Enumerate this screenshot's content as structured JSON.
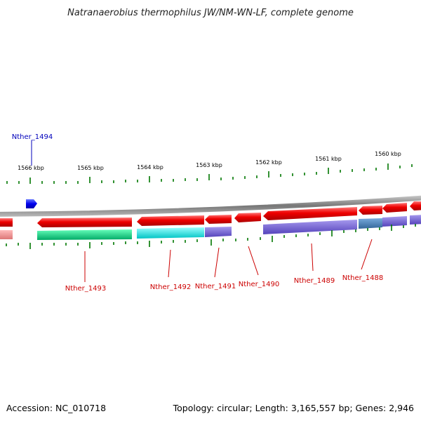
{
  "title": "Natranaerobius thermophilus JW/NM-WN-LF, complete genome",
  "footer": {
    "accession": "Accession: NC_010718",
    "summary": "Topology: circular; Length: 3,165,557 bp; Genes: 2,946"
  },
  "scale_labels": [
    "1566 kbp",
    "1565 kbp",
    "1564 kbp",
    "1563 kbp",
    "1562 kbp",
    "1561 kbp",
    "1560 kbp"
  ],
  "genes": [
    {
      "id": "Nther_1494",
      "strand": "forward",
      "label_color": "#0000bb"
    },
    {
      "id": "Nther_1493",
      "strand": "reverse",
      "label_color": "#cc0000"
    },
    {
      "id": "Nther_1492",
      "strand": "reverse",
      "label_color": "#cc0000"
    },
    {
      "id": "Nther_1491",
      "strand": "reverse",
      "label_color": "#cc0000"
    },
    {
      "id": "Nther_1490",
      "strand": "reverse",
      "label_color": "#cc0000"
    },
    {
      "id": "Nther_1489",
      "strand": "reverse",
      "label_color": "#cc0000"
    },
    {
      "id": "Nther_1488",
      "strand": "reverse",
      "label_color": "#cc0000"
    }
  ],
  "colors": {
    "forward_gene": "#0000ee",
    "reverse_gene": "#ee0000",
    "backbone": "#888888",
    "ticks": "#007700",
    "cog_green": "#00cc77",
    "cog_cyan": "#00dddd",
    "cog_purple": "#6655cc",
    "cog_steel": "#4477aa",
    "cog_pink": "#ee8888"
  }
}
